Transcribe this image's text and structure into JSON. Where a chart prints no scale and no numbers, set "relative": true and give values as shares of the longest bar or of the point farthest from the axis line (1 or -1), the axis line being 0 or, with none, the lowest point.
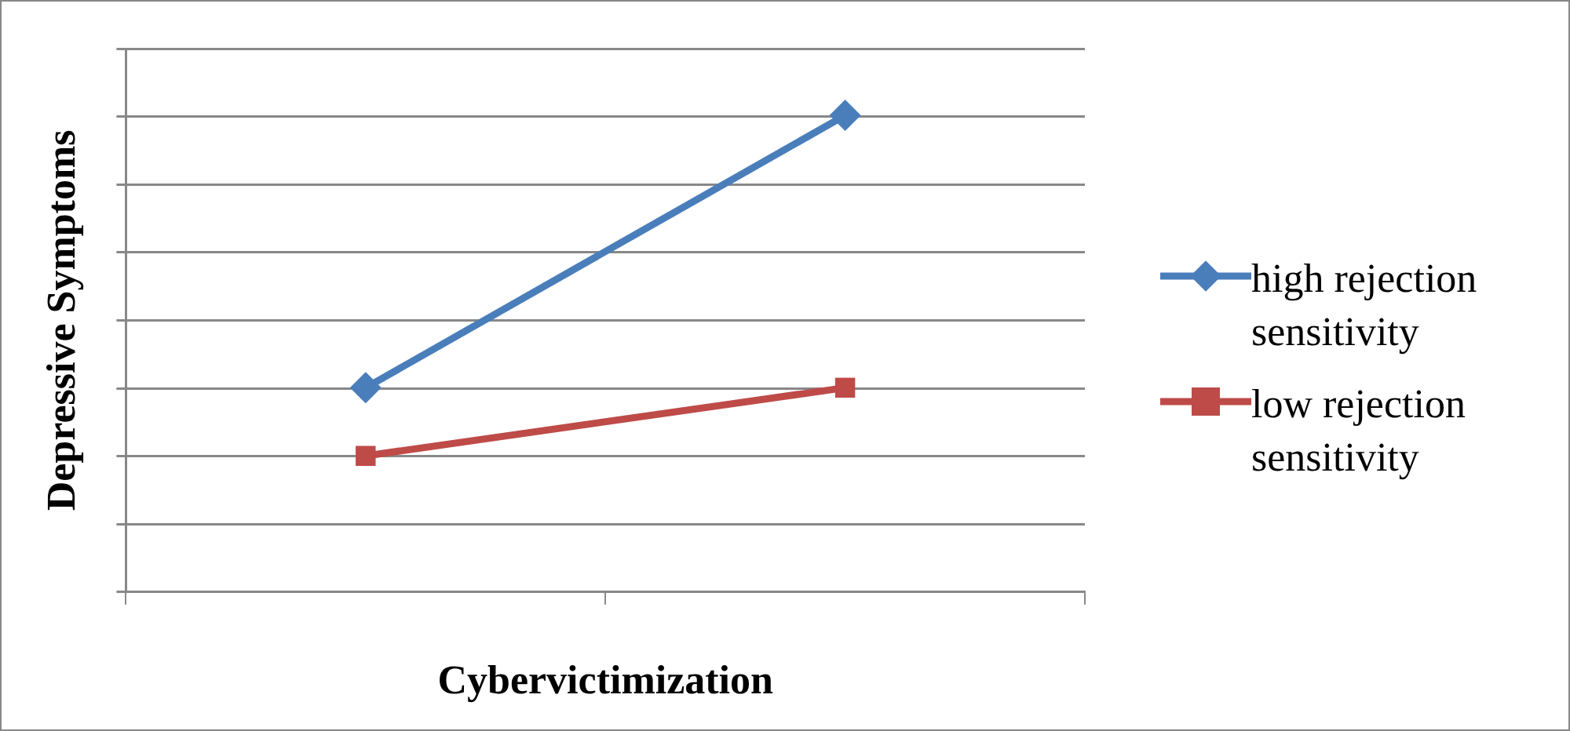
{
  "chart_data": {
    "type": "line",
    "xlabel": "Cybervictimization",
    "ylabel": "Depressive Symptoms",
    "categories": [
      null,
      null
    ],
    "relative": true,
    "grid": "y",
    "legend": "right",
    "line_style": "solid",
    "series": [
      {
        "name": "high rejection sensitivity",
        "color": "#4a7ebb",
        "marker": "diamond",
        "values": [
          0.4286,
          1
        ]
      },
      {
        "name": "low rejection sensitivity",
        "color": "#be4b48",
        "marker": "square",
        "values": [
          0.2857,
          0.4286
        ]
      }
    ]
  }
}
